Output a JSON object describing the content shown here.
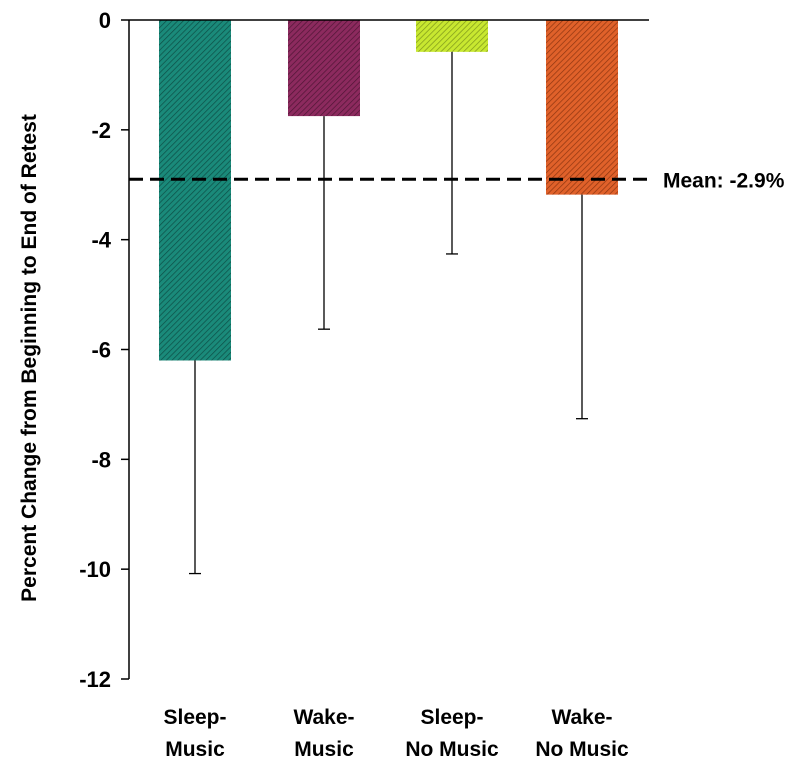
{
  "chart_data": {
    "type": "bar",
    "title": "",
    "xlabel": "",
    "ylabel": "Percent Change from Beginning to End of Retest",
    "ylim": [
      -12,
      0
    ],
    "yticks": [
      0,
      -2,
      -4,
      -6,
      -8,
      -10,
      -12
    ],
    "ytick_labels": [
      "0",
      "-2",
      "-4",
      "-6",
      "-8",
      "-10",
      "-12"
    ],
    "grid": false,
    "legend": "none",
    "categories": [
      {
        "line1": "Sleep-",
        "line2": "Music"
      },
      {
        "line1": "Wake-",
        "line2": "Music"
      },
      {
        "line1": "Sleep-",
        "line2": "No Music"
      },
      {
        "line1": "Wake-",
        "line2": "No Music"
      }
    ],
    "values": [
      -6.2,
      -1.75,
      -0.58,
      -3.18
    ],
    "error": [
      3.88,
      3.88,
      3.68,
      4.08
    ],
    "bar_colors": [
      "#1a8a7a",
      "#8c2a5e",
      "#b8d81a",
      "#d9541e"
    ],
    "reference_line": {
      "value": -2.9,
      "label": "Mean: -2.9%",
      "style": "dashed",
      "color": "#000000"
    }
  }
}
